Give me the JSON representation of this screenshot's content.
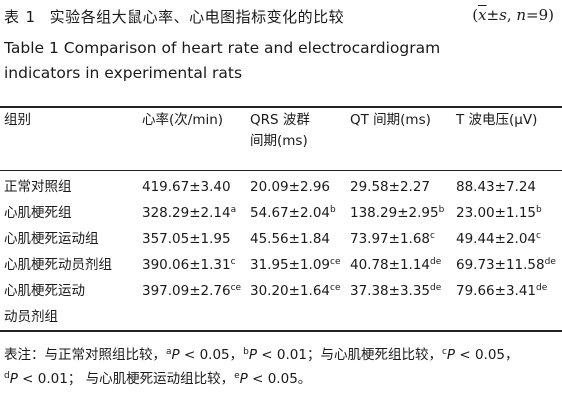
{
  "caption": {
    "label_cn": "表",
    "number": "1",
    "title_cn": "实验各组大鼠心率、心电图指标变化的比较",
    "stats": {
      "x": "x",
      "sep": "±",
      "s": "s",
      "comma": ", ",
      "n": "n",
      "eq": "=9)",
      "open": "("
    },
    "title_en_line1": "Table 1    Comparison of heart rate and electrocardiogram",
    "title_en_line2": "indicators in experimental rats"
  },
  "table": {
    "headers": [
      {
        "line1": "组别",
        "line2": ""
      },
      {
        "line1": "心率(次/min)",
        "line2": ""
      },
      {
        "line1": "QRS 波群",
        "line2": "间期(ms)"
      },
      {
        "line1": "QT 间期(ms)",
        "line2": ""
      },
      {
        "line1": "T 波电压(μV)",
        "line2": ""
      }
    ],
    "rows": [
      {
        "group": "正常对照组",
        "group2": "",
        "hr": "419.67±3.40",
        "hr_sup": "",
        "qrs": "20.09±2.96",
        "qrs_sup": "",
        "qt": "29.58±2.27",
        "qt_sup": "",
        "t": "88.43±7.24",
        "t_sup": ""
      },
      {
        "group": "心肌梗死组",
        "group2": "",
        "hr": "328.29±2.14",
        "hr_sup": "a",
        "qrs": "54.67±2.04",
        "qrs_sup": "b",
        "qt": "138.29±2.95",
        "qt_sup": "b",
        "t": "23.00±1.15",
        "t_sup": "b"
      },
      {
        "group": "心肌梗死运动组",
        "group2": "",
        "hr": "357.05±1.95",
        "hr_sup": "",
        "qrs": "45.56±1.84",
        "qrs_sup": "",
        "qt": "73.97±1.68",
        "qt_sup": "c",
        "t": "49.44±2.04",
        "t_sup": "c"
      },
      {
        "group": "心肌梗死动员剂组",
        "group2": "",
        "hr": "390.06±1.31",
        "hr_sup": "c",
        "qrs": "31.95±1.09",
        "qrs_sup": "ce",
        "qt": "40.78±1.14",
        "qt_sup": "de",
        "t": "69.73±11.58",
        "t_sup": "de"
      },
      {
        "group": "心肌梗死运动",
        "group2": "动员剂组",
        "hr": "397.09±2.76",
        "hr_sup": "ce",
        "qrs": "30.20±1.64",
        "qrs_sup": "ce",
        "qt": "37.38±3.35",
        "qt_sup": "de",
        "t": "79.66±3.41",
        "t_sup": "de"
      }
    ]
  },
  "note": {
    "prefix": "表注：与正常对照组比较，",
    "a": "a",
    "p1": "P",
    "t1": " < 0.05，",
    "b": "b",
    "p2": "P",
    "t2": " < 0.01；与心肌梗死组比较，",
    "c": "c",
    "p3": "P",
    "t3": " < 0.05，",
    "d": "d",
    "p4": "P",
    "t4": " < 0.01； 与心肌梗死运动组比较，",
    "e": "e",
    "p5": "P",
    "t5": " < 0.05。"
  }
}
